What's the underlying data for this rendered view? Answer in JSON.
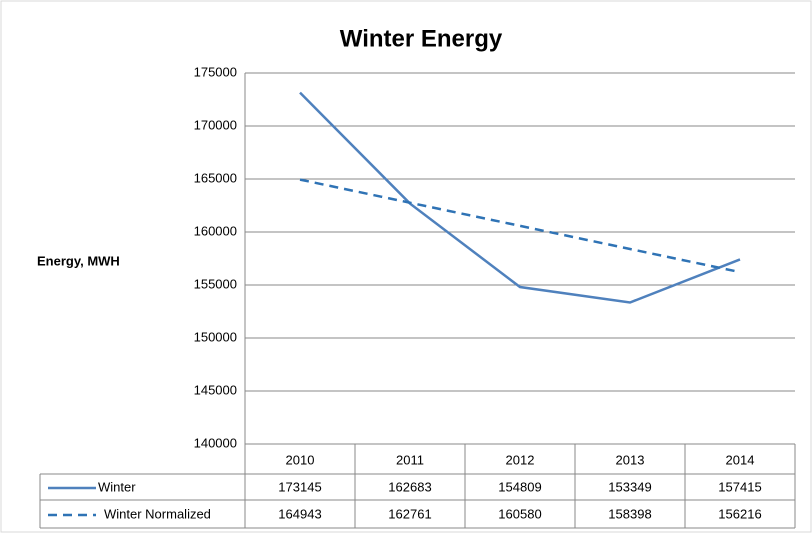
{
  "chart_data": {
    "type": "line",
    "title": "Winter Energy",
    "y_label": "Energy, MWH",
    "categories": [
      "2010",
      "2011",
      "2012",
      "2013",
      "2014"
    ],
    "series": [
      {
        "name": "Winter",
        "color": "#4f81bd",
        "dashed": false,
        "values": [
          173145,
          162683,
          154809,
          153349,
          157415
        ]
      },
      {
        "name": "Winter Normalized",
        "color": "#2f73b5",
        "dashed": true,
        "values": [
          164943,
          162761,
          160580,
          158398,
          156216
        ]
      }
    ],
    "ylim": [
      140000,
      175000
    ],
    "yticks": [
      140000,
      145000,
      150000,
      155000,
      160000,
      165000,
      170000,
      175000
    ],
    "grid": true,
    "data_table": true
  }
}
